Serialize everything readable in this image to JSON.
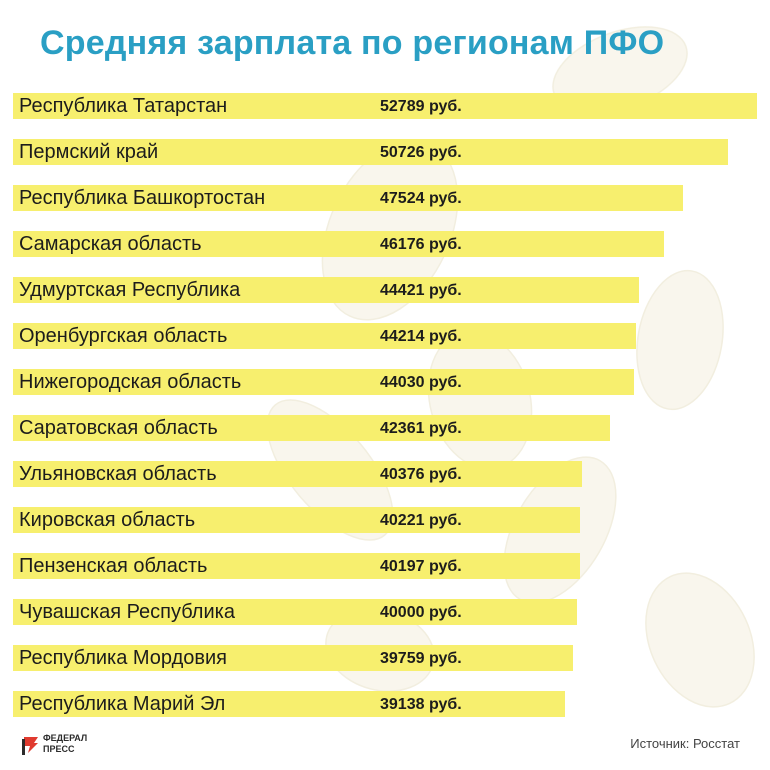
{
  "colors": {
    "title": "#2a9fc4",
    "bar": "#f7ef6e",
    "text": "#1c1c1c",
    "logo_accent": "#e03a2f"
  },
  "logo": {
    "line1": "ФЕДЕРАЛ",
    "line2": "ПРЕСС"
  },
  "source": "Источник: Росстат",
  "chart_data": {
    "type": "bar",
    "orientation": "horizontal",
    "title": "Средняя зарплата по регионам ПФО",
    "value_suffix": " руб.",
    "categories": [
      "Республика Татарстан",
      "Пермский край",
      "Республика Башкортостан",
      "Самарская область",
      "Удмуртская Республика",
      "Оренбургская область",
      "Нижегородская область",
      "Саратовская область",
      "Ульяновская область",
      "Кировская область",
      "Пензенская область",
      "Чувашская Республика",
      "Республика Мордовия",
      "Республика Марий Эл"
    ],
    "values": [
      52789,
      50726,
      47524,
      46176,
      44421,
      44214,
      44030,
      42361,
      40376,
      40221,
      40197,
      40000,
      39759,
      39138
    ],
    "value_labels": [
      "52789 руб.",
      "50726 руб.",
      "47524 руб.",
      "46176 руб.",
      "44421 руб.",
      "44214 руб.",
      "44030 руб.",
      "42361 руб.",
      "40376 руб.",
      "40221 руб.",
      "40197 руб.",
      "40000 руб.",
      "39759 руб.",
      "39138 руб."
    ]
  }
}
